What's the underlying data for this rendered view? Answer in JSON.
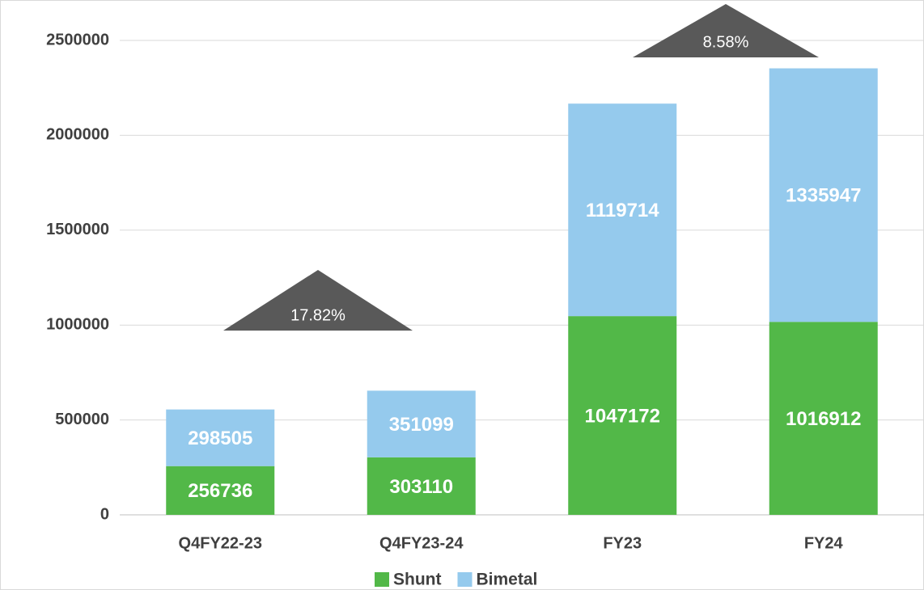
{
  "chart_data": {
    "type": "stacked_bar",
    "categories": [
      "Q4FY22-23",
      "Q4FY23-24",
      "FY23",
      "FY24"
    ],
    "series": [
      {
        "name": "Shunt",
        "color": "#52b848",
        "values": [
          256736,
          303110,
          1047172,
          1016912
        ]
      },
      {
        "name": "Bimetal",
        "color": "#95caed",
        "values": [
          298505,
          351099,
          1119714,
          1335947
        ]
      }
    ],
    "ylim": [
      0,
      2500000
    ],
    "yticks": [
      0,
      500000,
      1000000,
      1500000,
      2000000,
      2500000
    ],
    "grid": true,
    "legend": "bottom",
    "annotations": [
      {
        "text": "17.82%"
      },
      {
        "text": "8.58%"
      }
    ]
  }
}
